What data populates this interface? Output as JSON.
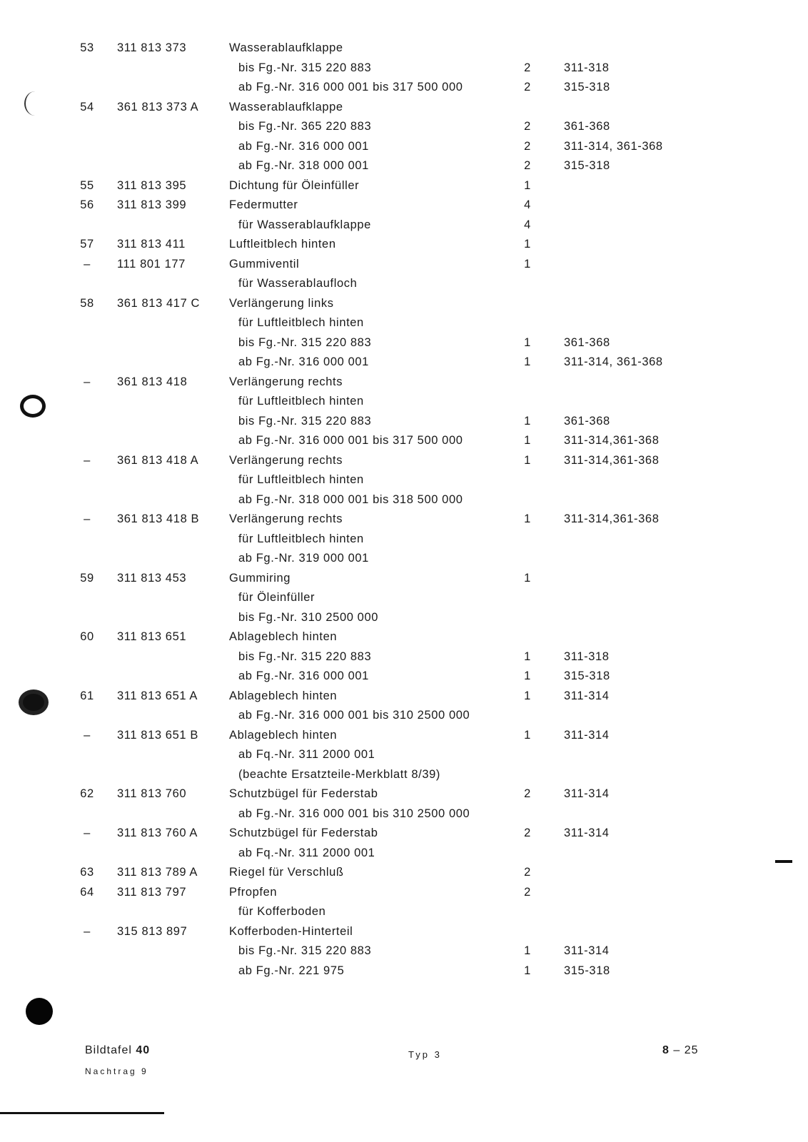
{
  "rows": [
    {
      "no": "53",
      "part": "311 813 373",
      "desc": "Wasserablaufklappe",
      "qty": "",
      "typ": ""
    },
    {
      "no": "",
      "part": "",
      "desc": "bis Fg.-Nr. 315 220 883",
      "qty": "2",
      "typ": "311-318"
    },
    {
      "no": "",
      "part": "",
      "desc": "ab Fg.-Nr. 316 000 001 bis 317 500 000",
      "qty": "2",
      "typ": "315-318"
    },
    {
      "no": "54",
      "part": "361 813 373 A",
      "desc": "Wasserablaufklappe",
      "qty": "",
      "typ": ""
    },
    {
      "no": "",
      "part": "",
      "desc": "bis Fg.-Nr. 365 220 883",
      "qty": "2",
      "typ": "361-368"
    },
    {
      "no": "",
      "part": "",
      "desc": "ab Fg.-Nr. 316 000 001",
      "qty": "2",
      "typ": "311-314, 361-368"
    },
    {
      "no": "",
      "part": "",
      "desc": "ab Fg.-Nr. 318 000 001",
      "qty": "2",
      "typ": "315-318"
    },
    {
      "no": "55",
      "part": "311 813 395",
      "desc": "Dichtung für Öleinfüller",
      "qty": "1",
      "typ": ""
    },
    {
      "no": "56",
      "part": "311 813 399",
      "desc": "Federmutter",
      "qty": "4",
      "typ": ""
    },
    {
      "no": "",
      "part": "",
      "desc": "für Wasserablaufklappe",
      "qty": "4",
      "typ": ""
    },
    {
      "no": "57",
      "part": "311 813 411",
      "desc": "Luftleitblech hinten",
      "qty": "1",
      "typ": ""
    },
    {
      "no": "–",
      "part": "111 801 177",
      "desc": "Gummiventil",
      "qty": "1",
      "typ": ""
    },
    {
      "no": "",
      "part": "",
      "desc": "für Wasserablaufloch",
      "qty": "",
      "typ": ""
    },
    {
      "no": "58",
      "part": "361 813 417 C",
      "desc": "Verlängerung links",
      "qty": "",
      "typ": ""
    },
    {
      "no": "",
      "part": "",
      "desc": "für Luftleitblech hinten",
      "qty": "",
      "typ": ""
    },
    {
      "no": "",
      "part": "",
      "desc": "bis Fg.-Nr. 315 220 883",
      "qty": "1",
      "typ": "361-368"
    },
    {
      "no": "",
      "part": "",
      "desc": "ab Fg.-Nr. 316 000 001",
      "qty": "1",
      "typ": "311-314, 361-368"
    },
    {
      "no": "–",
      "part": "361 813 418",
      "desc": "Verlängerung rechts",
      "qty": "",
      "typ": ""
    },
    {
      "no": "",
      "part": "",
      "desc": "für Luftleitblech hinten",
      "qty": "",
      "typ": ""
    },
    {
      "no": "",
      "part": "",
      "desc": "bis Fg.-Nr. 315 220 883",
      "qty": "1",
      "typ": "361-368"
    },
    {
      "no": "",
      "part": "",
      "desc": "ab Fg.-Nr. 316 000 001 bis 317 500 000",
      "qty": "1",
      "typ": "311-314,361-368"
    },
    {
      "no": "–",
      "part": "361 813 418 A",
      "desc": "Verlängerung rechts",
      "qty": "1",
      "typ": "311-314,361-368"
    },
    {
      "no": "",
      "part": "",
      "desc": "für Luftleitblech hinten",
      "qty": "",
      "typ": ""
    },
    {
      "no": "",
      "part": "",
      "desc": "ab Fg.-Nr. 318 000 001 bis 318 500 000",
      "qty": "",
      "typ": ""
    },
    {
      "no": "–",
      "part": "361 813 418 B",
      "desc": "Verlängerung rechts",
      "qty": "1",
      "typ": "311-314,361-368"
    },
    {
      "no": "",
      "part": "",
      "desc": "für Luftleitblech hinten",
      "qty": "",
      "typ": ""
    },
    {
      "no": "",
      "part": "",
      "desc": "ab Fg.-Nr. 319 000 001",
      "qty": "",
      "typ": ""
    },
    {
      "no": "59",
      "part": "311 813 453",
      "desc": "Gummiring",
      "qty": "1",
      "typ": ""
    },
    {
      "no": "",
      "part": "",
      "desc": "für Öleinfüller",
      "qty": "",
      "typ": ""
    },
    {
      "no": "",
      "part": "",
      "desc": "bis Fg.-Nr. 310 2500 000",
      "qty": "",
      "typ": ""
    },
    {
      "no": "60",
      "part": "311 813 651",
      "desc": "Ablageblech hinten",
      "qty": "",
      "typ": ""
    },
    {
      "no": "",
      "part": "",
      "desc": "bis Fg.-Nr. 315 220 883",
      "qty": "1",
      "typ": "311-318"
    },
    {
      "no": "",
      "part": "",
      "desc": "ab Fg.-Nr. 316 000 001",
      "qty": "1",
      "typ": "315-318"
    },
    {
      "no": "61",
      "part": "311 813 651 A",
      "desc": "Ablageblech hinten",
      "qty": "1",
      "typ": "311-314"
    },
    {
      "no": "",
      "part": "",
      "desc": "ab Fg.-Nr. 316 000 001 bis 310 2500 000",
      "qty": "",
      "typ": ""
    },
    {
      "no": "–",
      "part": "311 813 651 B",
      "desc": "Ablageblech hinten",
      "qty": "1",
      "typ": "311-314"
    },
    {
      "no": "",
      "part": "",
      "desc": "ab Fq.-Nr. 311 2000 001",
      "qty": "",
      "typ": ""
    },
    {
      "no": "",
      "part": "",
      "desc": "(beachte Ersatzteile-Merkblatt 8/39)",
      "qty": "",
      "typ": ""
    },
    {
      "no": "62",
      "part": "311 813 760",
      "desc": "Schutzbügel für Federstab",
      "qty": "2",
      "typ": "311-314"
    },
    {
      "no": "",
      "part": "",
      "desc": "ab Fg.-Nr. 316 000 001 bis 310 2500 000",
      "qty": "",
      "typ": ""
    },
    {
      "no": "–",
      "part": "311 813 760 A",
      "desc": "Schutzbügel für Federstab",
      "qty": "2",
      "typ": "311-314"
    },
    {
      "no": "",
      "part": "",
      "desc": "ab Fq.-Nr. 311 2000 001",
      "qty": "",
      "typ": ""
    },
    {
      "no": "63",
      "part": "311 813 789 A",
      "desc": "Riegel für Verschluß",
      "qty": "2",
      "typ": ""
    },
    {
      "no": "64",
      "part": "311 813 797",
      "desc": "Pfropfen",
      "qty": "2",
      "typ": ""
    },
    {
      "no": "",
      "part": "",
      "desc": "für Kofferboden",
      "qty": "",
      "typ": ""
    },
    {
      "no": "–",
      "part": "315 813 897",
      "desc": "Kofferboden-Hinterteil",
      "qty": "",
      "typ": ""
    },
    {
      "no": "",
      "part": "",
      "desc": "bis Fg.-Nr. 315 220 883",
      "qty": "1",
      "typ": "311-314"
    },
    {
      "no": "",
      "part": "",
      "desc": "ab Fg.-Nr. 221 975",
      "qty": "1",
      "typ": "315-318"
    }
  ],
  "footer": {
    "plate_label": "Bildtafel",
    "plate_number": "40",
    "supplement": "Nachtrag 9",
    "type": "Typ 3",
    "page_section": "8",
    "page_sep": " – ",
    "page_number": "25"
  }
}
